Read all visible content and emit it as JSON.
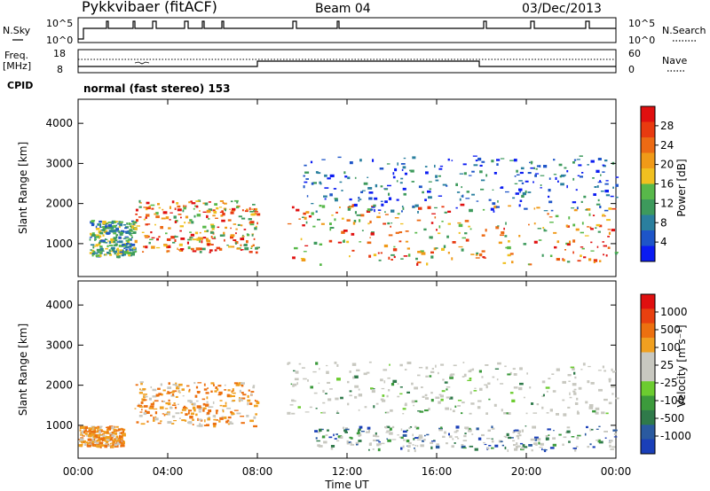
{
  "header": {
    "station": "Pykkvibaer (fitACF)",
    "beam": "Beam 04",
    "date": "03/Dec/2013"
  },
  "top_panels": {
    "nsky_label": "N.Sky",
    "nsearch_label": "N.Search",
    "nsky_ticks": [
      "10^5",
      "10^0"
    ],
    "freq_label_1": "Freq.",
    "freq_label_2": "[MHz]",
    "freq_ticks": [
      "18",
      "8"
    ],
    "nave_label": "Nave",
    "nave_ticks": [
      "60",
      "0"
    ],
    "cpid_label": "CPID",
    "cpid_text": "normal (fast stereo) 153"
  },
  "chart_data": [
    {
      "type": "heatmap",
      "name": "Power",
      "xlabel": "Time UT",
      "ylabel": "Slant Range [km]",
      "x_ticks": [
        "00:00",
        "04:00",
        "08:00",
        "12:00",
        "16:00",
        "20:00",
        "00:00"
      ],
      "x_range_hours": [
        0,
        24
      ],
      "y_ticks": [
        1000,
        2000,
        3000,
        4000
      ],
      "ylim": [
        180,
        4600
      ],
      "colorbar": {
        "label": "Power [dB]",
        "ticks": [
          "4",
          "8",
          "12",
          "16",
          "20",
          "24",
          "28"
        ],
        "colors": [
          "#0b1cf2",
          "#1e55c8",
          "#2a7f9e",
          "#3d9a5c",
          "#58b84a",
          "#f0c020",
          "#f09a18",
          "#ec6a14",
          "#e83a10",
          "#e01010"
        ]
      },
      "echo_regions": [
        {
          "t": [
            0.5,
            2.5
          ],
          "r": [
            700,
            1600
          ],
          "level": "medium"
        },
        {
          "t": [
            2.5,
            8.0
          ],
          "r": [
            800,
            2100
          ],
          "level": "strong"
        },
        {
          "t": [
            9.3,
            24.0
          ],
          "r": [
            500,
            2000
          ],
          "level": "strong"
        },
        {
          "t": [
            10.0,
            24.0
          ],
          "r": [
            1800,
            3200
          ],
          "level": "weak"
        }
      ]
    },
    {
      "type": "heatmap",
      "name": "Velocity",
      "xlabel": "Time UT",
      "ylabel": "Slant Range [km]",
      "x_ticks": [
        "00:00",
        "04:00",
        "08:00",
        "12:00",
        "16:00",
        "20:00",
        "00:00"
      ],
      "x_range_hours": [
        0,
        24
      ],
      "y_ticks": [
        1000,
        2000,
        3000,
        4000
      ],
      "ylim": [
        180,
        4600
      ],
      "colorbar": {
        "label": "Velocity [m s⁻¹]",
        "ticks": [
          "1000",
          "500",
          "100",
          "25",
          "-25",
          "-100",
          "-500",
          "-1000"
        ],
        "colors": [
          "#1a3fb8",
          "#2a5aa0",
          "#2f7a4a",
          "#3c9a3c",
          "#6ccc30",
          "#c8c8c0",
          "#c8c8c0",
          "#f0a020",
          "#ec7010",
          "#e84010",
          "#e01010"
        ]
      },
      "echo_regions": [
        {
          "t": [
            0.0,
            2.0
          ],
          "r": [
            500,
            1000
          ],
          "level": "orange"
        },
        {
          "t": [
            2.5,
            8.0
          ],
          "r": [
            1000,
            2100
          ],
          "level": "orange"
        },
        {
          "t": [
            9.3,
            24.0
          ],
          "r": [
            1300,
            2600
          ],
          "level": "grey"
        },
        {
          "t": [
            10.5,
            24.0
          ],
          "r": [
            400,
            1000
          ],
          "level": "green-blue"
        }
      ]
    }
  ]
}
